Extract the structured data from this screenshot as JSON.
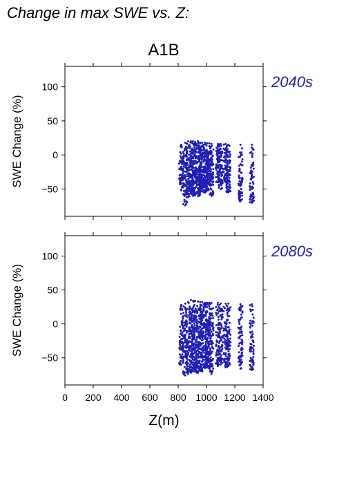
{
  "title": "Change in max SWE vs. Z:",
  "scenario": "A1B",
  "chart_data": [
    {
      "type": "scatter",
      "panel_label": "2040s",
      "xlabel": "",
      "ylabel": "SWE Change (%)",
      "xlim": [
        0,
        1400
      ],
      "ylim": [
        -90,
        130
      ],
      "yticks": [
        -50,
        0,
        50,
        100
      ],
      "color": "#1f1fb4",
      "columns": [
        {
          "x": 822,
          "ymin": -52,
          "ymax": 15
        },
        {
          "x": 850,
          "ymin": -74,
          "ymax": 18
        },
        {
          "x": 870,
          "ymin": -62,
          "ymax": 20
        },
        {
          "x": 890,
          "ymin": -55,
          "ymax": 20
        },
        {
          "x": 905,
          "ymin": -60,
          "ymax": 20
        },
        {
          "x": 920,
          "ymin": -58,
          "ymax": 19
        },
        {
          "x": 940,
          "ymin": -60,
          "ymax": 20
        },
        {
          "x": 955,
          "ymin": -55,
          "ymax": 18
        },
        {
          "x": 970,
          "ymin": -50,
          "ymax": 18
        },
        {
          "x": 990,
          "ymin": -55,
          "ymax": 18
        },
        {
          "x": 1005,
          "ymin": -52,
          "ymax": 17
        },
        {
          "x": 1020,
          "ymin": -40,
          "ymax": 17
        },
        {
          "x": 1035,
          "ymin": -60,
          "ymax": 16
        },
        {
          "x": 1080,
          "ymin": -40,
          "ymax": 16
        },
        {
          "x": 1100,
          "ymin": -50,
          "ymax": 16
        },
        {
          "x": 1135,
          "ymin": -40,
          "ymax": 16
        },
        {
          "x": 1155,
          "ymin": -55,
          "ymax": 15
        },
        {
          "x": 1240,
          "ymin": -68,
          "ymax": 15
        },
        {
          "x": 1320,
          "ymin": -70,
          "ymax": 15
        }
      ]
    },
    {
      "type": "scatter",
      "panel_label": "2080s",
      "xlabel": "Z(m)",
      "ylabel": "SWE Change (%)",
      "xlim": [
        0,
        1400
      ],
      "ylim": [
        -90,
        130
      ],
      "xticks": [
        0,
        200,
        400,
        600,
        800,
        1000,
        1200,
        1400
      ],
      "yticks": [
        -50,
        0,
        50,
        100
      ],
      "color": "#1f1fb4",
      "columns": [
        {
          "x": 822,
          "ymin": -60,
          "ymax": 28
        },
        {
          "x": 850,
          "ymin": -76,
          "ymax": 30
        },
        {
          "x": 870,
          "ymin": -74,
          "ymax": 32
        },
        {
          "x": 890,
          "ymin": -72,
          "ymax": 35
        },
        {
          "x": 905,
          "ymin": -70,
          "ymax": 34
        },
        {
          "x": 920,
          "ymin": -70,
          "ymax": 34
        },
        {
          "x": 940,
          "ymin": -72,
          "ymax": 33
        },
        {
          "x": 955,
          "ymin": -68,
          "ymax": 32
        },
        {
          "x": 970,
          "ymin": -70,
          "ymax": 32
        },
        {
          "x": 990,
          "ymin": -65,
          "ymax": 31
        },
        {
          "x": 1005,
          "ymin": -64,
          "ymax": 31
        },
        {
          "x": 1020,
          "ymin": -66,
          "ymax": 31
        },
        {
          "x": 1035,
          "ymin": -74,
          "ymax": 31
        },
        {
          "x": 1080,
          "ymin": -62,
          "ymax": 31
        },
        {
          "x": 1100,
          "ymin": -60,
          "ymax": 30
        },
        {
          "x": 1135,
          "ymin": -64,
          "ymax": 30
        },
        {
          "x": 1155,
          "ymin": -62,
          "ymax": 30
        },
        {
          "x": 1240,
          "ymin": -66,
          "ymax": 29
        },
        {
          "x": 1320,
          "ymin": -68,
          "ymax": 29
        }
      ]
    }
  ]
}
